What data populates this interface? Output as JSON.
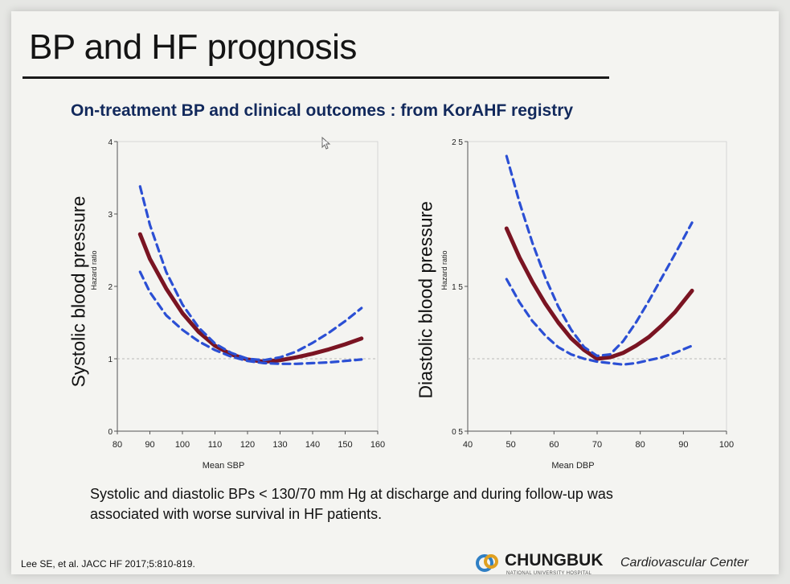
{
  "slide": {
    "title": "BP and HF prognosis",
    "subtitle": "On-treatment BP and clinical outcomes : from KorAHF registry",
    "caption_line1": "Systolic and diastolic BPs < 130/70 mm Hg at discharge and during follow-up was",
    "caption_line2": "associated with worse survival in HF patients.",
    "citation": "Lee SE, et al. JACC HF 2017;5:810-819.",
    "logo_main": "CHUNGBUK",
    "logo_tag": "Cardiovascular Center",
    "logo_sub": "NATIONAL UNIVERSITY HOSPITAL",
    "logo_icon": "chungbuk-logo-icon"
  },
  "colors": {
    "estimate": "#7a1422",
    "ci": "#2b4fd4",
    "reference": "#b8b8b8",
    "subtitle": "#12295c"
  },
  "chart_data": [
    {
      "type": "line",
      "side_label": "Systolic blood pressure",
      "xlabel": "Mean SBP",
      "ylabel": "Hazard ratio",
      "xlim": [
        80,
        160
      ],
      "ylim": [
        0,
        4
      ],
      "xticks": [
        80,
        90,
        100,
        110,
        120,
        130,
        140,
        150,
        160
      ],
      "yticks": [
        0,
        1,
        2,
        3,
        4
      ],
      "reference_line": 1,
      "series": [
        {
          "role": "estimate",
          "x": [
            87,
            90,
            95,
            100,
            105,
            110,
            115,
            120,
            125,
            130,
            135,
            140,
            145,
            150,
            155
          ],
          "y": [
            2.72,
            2.38,
            1.97,
            1.63,
            1.37,
            1.18,
            1.06,
            0.99,
            0.96,
            0.98,
            1.02,
            1.07,
            1.13,
            1.2,
            1.28
          ]
        },
        {
          "role": "upper_ci",
          "x": [
            87,
            90,
            95,
            100,
            105,
            110,
            115,
            120,
            125,
            130,
            135,
            140,
            145,
            150,
            155
          ],
          "y": [
            3.38,
            2.85,
            2.2,
            1.75,
            1.43,
            1.21,
            1.08,
            1.0,
            0.98,
            1.02,
            1.1,
            1.22,
            1.36,
            1.52,
            1.7
          ]
        },
        {
          "role": "lower_ci",
          "x": [
            87,
            90,
            95,
            100,
            105,
            110,
            115,
            120,
            125,
            130,
            135,
            140,
            145,
            150,
            155
          ],
          "y": [
            2.2,
            1.92,
            1.6,
            1.4,
            1.24,
            1.12,
            1.03,
            0.97,
            0.94,
            0.93,
            0.93,
            0.94,
            0.95,
            0.97,
            0.99
          ]
        }
      ]
    },
    {
      "type": "line",
      "side_label": "Diastolic blood pressure",
      "xlabel": "Mean DBP",
      "ylabel": "Hazard ratio",
      "xlim": [
        40,
        100
      ],
      "ylim": [
        0.5,
        2.5
      ],
      "xticks": [
        40,
        50,
        60,
        70,
        80,
        90,
        100
      ],
      "yticks": [
        0.5,
        1.5,
        2.5
      ],
      "ytick_labels": [
        "0 5",
        "1 5",
        "2 5"
      ],
      "reference_line": 1,
      "series": [
        {
          "role": "estimate",
          "x": [
            49,
            52,
            55,
            58,
            61,
            64,
            67,
            70,
            73,
            76,
            79,
            82,
            85,
            88,
            92
          ],
          "y": [
            1.9,
            1.7,
            1.53,
            1.38,
            1.25,
            1.14,
            1.06,
            1.0,
            1.01,
            1.04,
            1.09,
            1.15,
            1.23,
            1.32,
            1.47
          ]
        },
        {
          "role": "upper_ci",
          "x": [
            49,
            52,
            55,
            58,
            61,
            64,
            67,
            70,
            73,
            76,
            79,
            82,
            85,
            88,
            92
          ],
          "y": [
            2.4,
            2.08,
            1.8,
            1.56,
            1.36,
            1.2,
            1.08,
            1.02,
            1.03,
            1.12,
            1.25,
            1.4,
            1.56,
            1.72,
            1.94
          ]
        },
        {
          "role": "lower_ci",
          "x": [
            49,
            52,
            55,
            58,
            61,
            64,
            67,
            70,
            73,
            76,
            79,
            82,
            85,
            88,
            92
          ],
          "y": [
            1.55,
            1.39,
            1.26,
            1.16,
            1.08,
            1.03,
            1.0,
            0.98,
            0.97,
            0.96,
            0.97,
            0.99,
            1.01,
            1.04,
            1.09
          ]
        }
      ]
    }
  ]
}
